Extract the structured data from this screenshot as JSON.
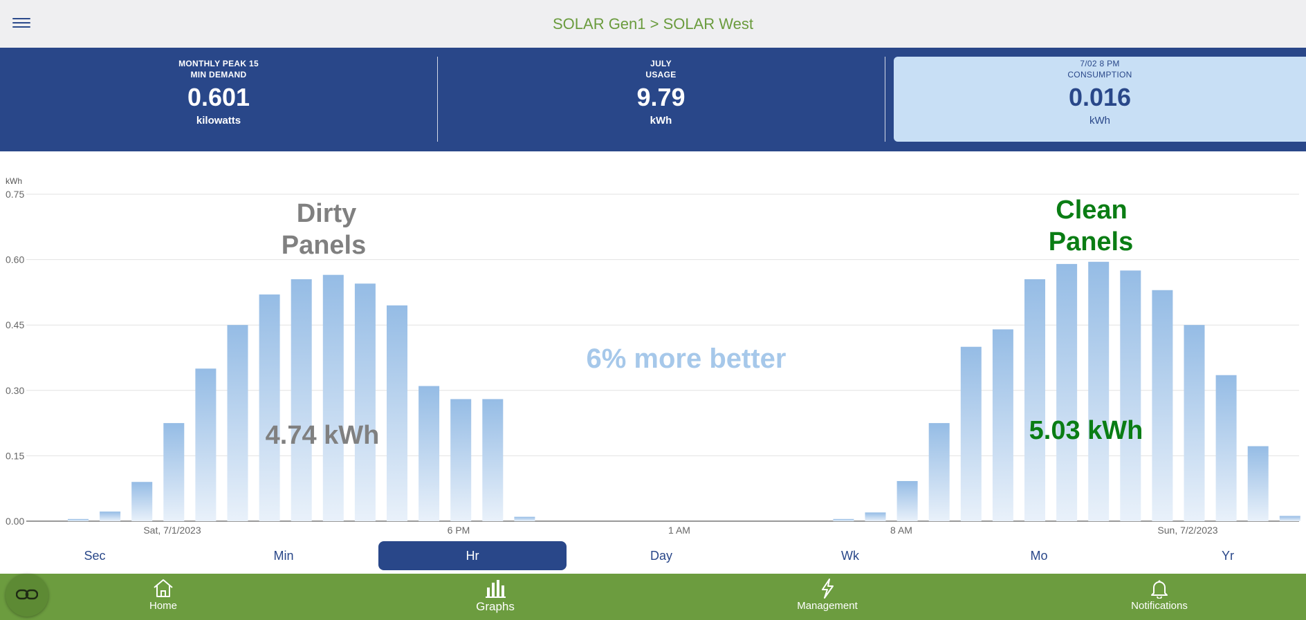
{
  "header": {
    "breadcrumb": "SOLAR Gen1 > SOLAR West"
  },
  "stats": [
    {
      "label_line1": "MONTHLY PEAK 15",
      "label_line2": "MIN DEMAND",
      "value": "0.601",
      "unit": "kilowatts"
    },
    {
      "label_line1": "JULY",
      "label_line2": "USAGE",
      "value": "9.79",
      "unit": "kWh"
    },
    {
      "label_line1": "7/02 8 PM",
      "label_line2": "CONSUMPTION",
      "value": "0.016",
      "unit": "kWh"
    }
  ],
  "colors": {
    "navy": "#294789",
    "green_bar": "#6c9c3f",
    "bar_fill": "#9cc0e6",
    "clean_text": "#0a7d14",
    "dirty_text": "#808080",
    "note_text": "#a6c8ea"
  },
  "chart_data": {
    "type": "bar",
    "ylabel": "kWh",
    "ylim": [
      0,
      0.75
    ],
    "y_ticks": [
      "0.00",
      "0.15",
      "0.30",
      "0.45",
      "0.60",
      "0.75"
    ],
    "x_tick_labels": [
      "Sat, 7/1/2023",
      "6 PM",
      "1 AM",
      "8 AM",
      "Sun, 7/2/2023"
    ],
    "grid": true,
    "values": [
      0.005,
      0.022,
      0.09,
      0.225,
      0.35,
      0.45,
      0.52,
      0.555,
      0.565,
      0.545,
      0.495,
      0.31,
      0.28,
      0.28,
      0.01,
      0,
      0,
      0,
      0,
      0,
      0,
      0,
      0,
      0,
      0.005,
      0.02,
      0.092,
      0.225,
      0.4,
      0.44,
      0.555,
      0.59,
      0.595,
      0.575,
      0.53,
      0.45,
      0.335,
      0.172,
      0.012
    ],
    "annotations": {
      "dirty_title_line1": "Dirty",
      "dirty_title_line2": "Panels",
      "dirty_total": "4.74 kWh",
      "clean_title_line1": "Clean",
      "clean_title_line2": "Panels",
      "clean_total": "5.03 kWh",
      "comparison": "6% more better"
    }
  },
  "tabs": [
    {
      "label": "Sec"
    },
    {
      "label": "Min"
    },
    {
      "label": "Hr",
      "active": true
    },
    {
      "label": "Day"
    },
    {
      "label": "Wk"
    },
    {
      "label": "Mo"
    },
    {
      "label": "Yr"
    }
  ],
  "nav": [
    {
      "label": "Home",
      "icon": "home-icon"
    },
    {
      "label": "Graphs",
      "icon": "bar-chart-icon",
      "active": true
    },
    {
      "label": "Management",
      "icon": "bolt-icon"
    },
    {
      "label": "Notifications",
      "icon": "bell-icon"
    }
  ]
}
